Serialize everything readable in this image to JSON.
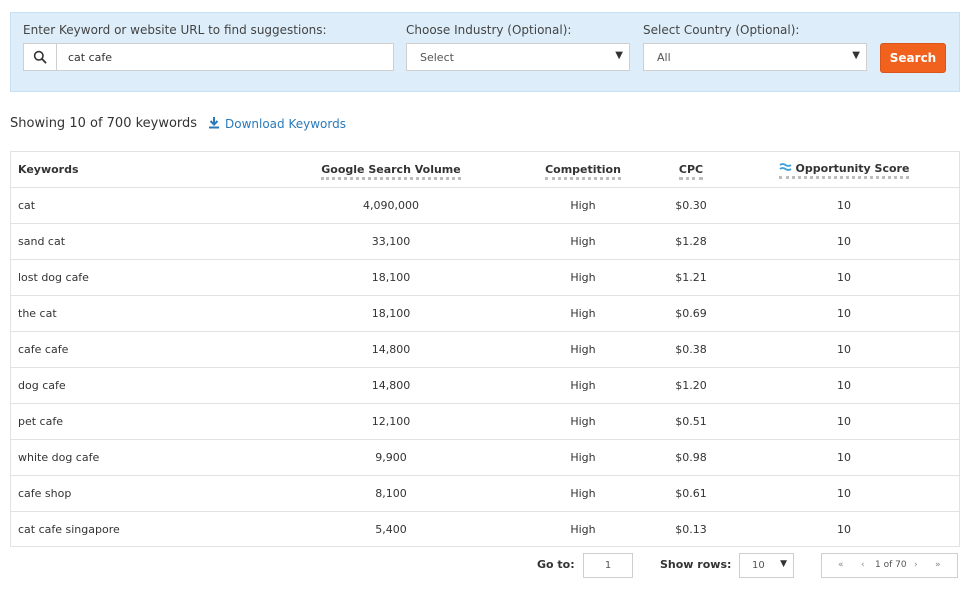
{
  "search": {
    "keyword_label": "Enter Keyword or website URL to find suggestions:",
    "keyword_value": "cat cafe",
    "industry_label": "Choose Industry (Optional):",
    "industry_value": "Select",
    "country_label": "Select Country (Optional):",
    "country_value": "All",
    "button_label": "Search",
    "accent_color": "#f0621e"
  },
  "summary": {
    "text": "Showing 10 of 700 keywords",
    "download_label": "Download Keywords"
  },
  "table": {
    "headers": {
      "keyword": "Keywords",
      "volume": "Google Search Volume",
      "competition": "Competition",
      "cpc": "CPC",
      "opportunity": "Opportunity Score"
    },
    "rows": [
      {
        "keyword": "cat",
        "volume": "4,090,000",
        "competition": "High",
        "cpc": "$0.30",
        "opportunity": "10"
      },
      {
        "keyword": "sand cat",
        "volume": "33,100",
        "competition": "High",
        "cpc": "$1.28",
        "opportunity": "10"
      },
      {
        "keyword": "lost dog cafe",
        "volume": "18,100",
        "competition": "High",
        "cpc": "$1.21",
        "opportunity": "10"
      },
      {
        "keyword": "the cat",
        "volume": "18,100",
        "competition": "High",
        "cpc": "$0.69",
        "opportunity": "10"
      },
      {
        "keyword": "cafe cafe",
        "volume": "14,800",
        "competition": "High",
        "cpc": "$0.38",
        "opportunity": "10"
      },
      {
        "keyword": "dog cafe",
        "volume": "14,800",
        "competition": "High",
        "cpc": "$1.20",
        "opportunity": "10"
      },
      {
        "keyword": "pet cafe",
        "volume": "12,100",
        "competition": "High",
        "cpc": "$0.51",
        "opportunity": "10"
      },
      {
        "keyword": "white dog cafe",
        "volume": "9,900",
        "competition": "High",
        "cpc": "$0.98",
        "opportunity": "10"
      },
      {
        "keyword": "cafe shop",
        "volume": "8,100",
        "competition": "High",
        "cpc": "$0.61",
        "opportunity": "10"
      },
      {
        "keyword": "cat cafe singapore",
        "volume": "5,400",
        "competition": "High",
        "cpc": "$0.13",
        "opportunity": "10"
      }
    ]
  },
  "pagination": {
    "goto_label": "Go to:",
    "goto_value": "1",
    "rows_label": "Show rows:",
    "rows_value": "10",
    "first": "«",
    "prev": "‹",
    "page_info": "1 of 70",
    "next": "›",
    "last": "»"
  },
  "icons": {
    "search": "search-icon",
    "download": "download-icon",
    "opportunity": "wave-icon",
    "dropdown": "caret-down-icon"
  }
}
